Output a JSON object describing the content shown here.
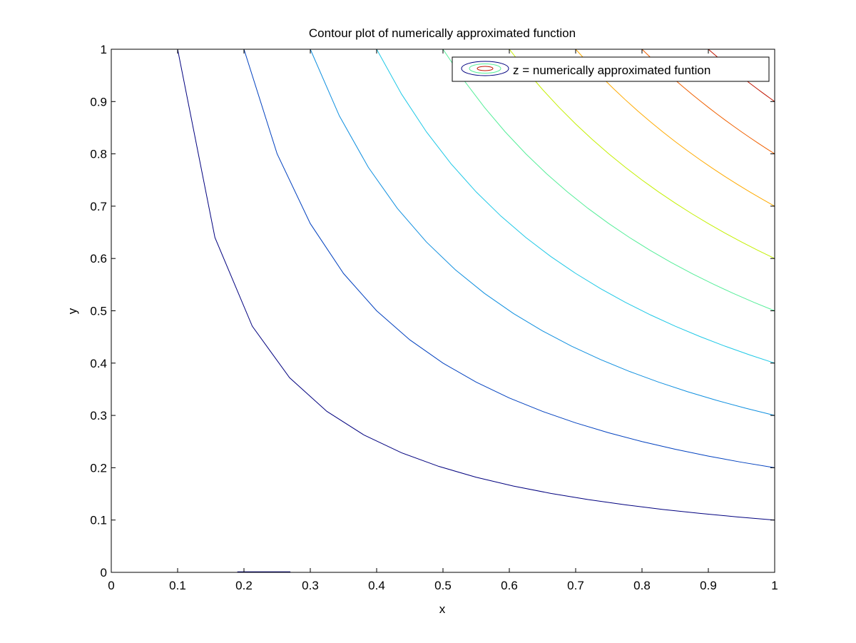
{
  "chart_data": {
    "type": "contour",
    "title": "Contour plot of numerically approximated function",
    "xlabel": "x",
    "ylabel": "y",
    "xlim": [
      0,
      1
    ],
    "ylim": [
      0,
      1
    ],
    "xticks": [
      "0",
      "0.1",
      "0.2",
      "0.3",
      "0.4",
      "0.5",
      "0.6",
      "0.7",
      "0.8",
      "0.9",
      "1"
    ],
    "yticks": [
      "0",
      "0.1",
      "0.2",
      "0.3",
      "0.4",
      "0.5",
      "0.6",
      "0.7",
      "0.8",
      "0.9",
      "1"
    ],
    "grid": false,
    "legend_position": "top-right",
    "legend": [
      "z = numerically approximated funtion"
    ],
    "contour_levels": [
      {
        "level": 0.1,
        "color": "#00007f"
      },
      {
        "level": 0.2,
        "color": "#0040bf"
      },
      {
        "level": 0.3,
        "color": "#0f8fdf"
      },
      {
        "level": 0.4,
        "color": "#1ec8e6"
      },
      {
        "level": 0.5,
        "color": "#55ee99"
      },
      {
        "level": 0.6,
        "color": "#c4f000"
      },
      {
        "level": 0.7,
        "color": "#ffaa00"
      },
      {
        "level": 0.8,
        "color": "#f06000"
      },
      {
        "level": 0.9,
        "color": "#c01400"
      }
    ],
    "extra_segments": [
      {
        "x": [
          0.19,
          0.27
        ],
        "y": [
          0,
          0
        ],
        "color": "#00007f"
      }
    ]
  }
}
